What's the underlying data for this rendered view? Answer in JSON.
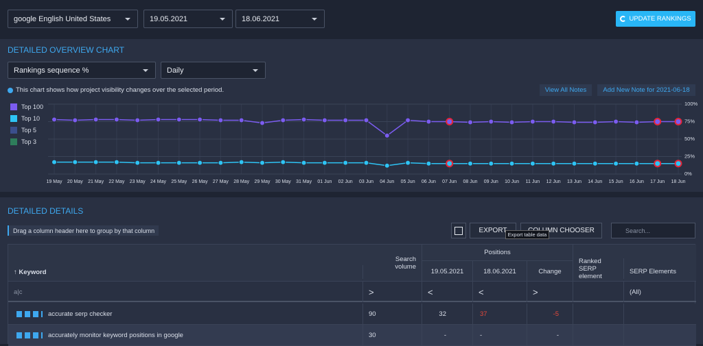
{
  "toolbar": {
    "engine": "google English United States",
    "start_date": "19.05.2021",
    "end_date": "18.06.2021",
    "update_button": "UPDATE RANKINGS"
  },
  "overview": {
    "title": "DETAILED OVERVIEW CHART",
    "metric": "Rankings sequence %",
    "interval": "Daily",
    "info": "This chart shows how project visibility changes over the selected period.",
    "view_notes": "View All Notes",
    "add_note": "Add New Note for 2021-06-18"
  },
  "chart_data": {
    "type": "line",
    "categories": [
      "19 May",
      "20 May",
      "21 May",
      "22 May",
      "23 May",
      "24 May",
      "25 May",
      "26 May",
      "27 May",
      "28 May",
      "29 May",
      "30 May",
      "31 May",
      "01 Jun",
      "02 Jun",
      "03 Jun",
      "04 Jun",
      "05 Jun",
      "06 Jun",
      "07 Jun",
      "08 Jun",
      "09 Jun",
      "10 Jun",
      "11 Jun",
      "12 Jun",
      "13 Jun",
      "14 Jun",
      "15 Jun",
      "16 Jun",
      "17 Jun",
      "18 Jun"
    ],
    "series": [
      {
        "name": "Top 100",
        "color": "#7b5cf0",
        "values": [
          78,
          77,
          78,
          78,
          77,
          78,
          78,
          78,
          77,
          77,
          73,
          77,
          78,
          77,
          77,
          77,
          55,
          77,
          75,
          75,
          74,
          75,
          74,
          75,
          75,
          74,
          74,
          75,
          74,
          75,
          75
        ]
      },
      {
        "name": "Top 10",
        "color": "#2ec4f5",
        "values": [
          17,
          17,
          17,
          17,
          16,
          16,
          16,
          16,
          16,
          17,
          16,
          17,
          16,
          16,
          16,
          16,
          12,
          16,
          15,
          15,
          15,
          15,
          15,
          15,
          15,
          15,
          15,
          15,
          15,
          15,
          15
        ]
      },
      {
        "name": "Top 5",
        "color": "#3b4f8c",
        "values": [
          null,
          null,
          null,
          null,
          null,
          null,
          null,
          null,
          null,
          null,
          null,
          null,
          null,
          null,
          null,
          null,
          null,
          null,
          null,
          null,
          null,
          null,
          null,
          null,
          null,
          null,
          null,
          null,
          null,
          null,
          null
        ]
      },
      {
        "name": "Top 3",
        "color": "#2e7d5b",
        "values": [
          null,
          null,
          null,
          null,
          null,
          null,
          null,
          null,
          null,
          null,
          null,
          null,
          null,
          null,
          null,
          null,
          null,
          null,
          null,
          null,
          null,
          null,
          null,
          null,
          null,
          null,
          null,
          null,
          null,
          null,
          null
        ]
      }
    ],
    "ylim": [
      0,
      100
    ],
    "yticks": [
      {
        "value": 0,
        "label": "0%"
      },
      {
        "value": 25,
        "label": "25%"
      },
      {
        "value": 50,
        "label": "50%"
      },
      {
        "value": 75,
        "label": "75%"
      },
      {
        "value": 100,
        "label": "100%"
      }
    ],
    "grid": true,
    "notes": [
      "07 Jun",
      "17 Jun",
      "18 Jun"
    ]
  },
  "details": {
    "title": "DETAILED DETAILS",
    "group_hint": "Drag a column header here to group by that column",
    "export": "EXPORT",
    "export_tooltip": "Export table data",
    "column_chooser": "COLUMN CHOOSER",
    "search": "Search...",
    "headers": {
      "keyword": "Keyword",
      "search_volume": "Search volume",
      "positions": "Positions",
      "date1": "19.05.2021",
      "date2": "18.06.2021",
      "change": "Change",
      "ranked": "Ranked SERP element",
      "serp": "SERP Elements"
    },
    "filters": {
      "volume": ">",
      "date1": "<",
      "date2": "<",
      "change": ">",
      "serp": "(All)"
    },
    "rows": [
      {
        "keyword": "accurate serp checker",
        "volume": 90,
        "pos1": 32,
        "pos2": 37,
        "change": -5
      },
      {
        "keyword": "accurately monitor keyword positions in google",
        "volume": 30,
        "pos1": "-",
        "pos2": "-",
        "change": "-"
      }
    ]
  }
}
